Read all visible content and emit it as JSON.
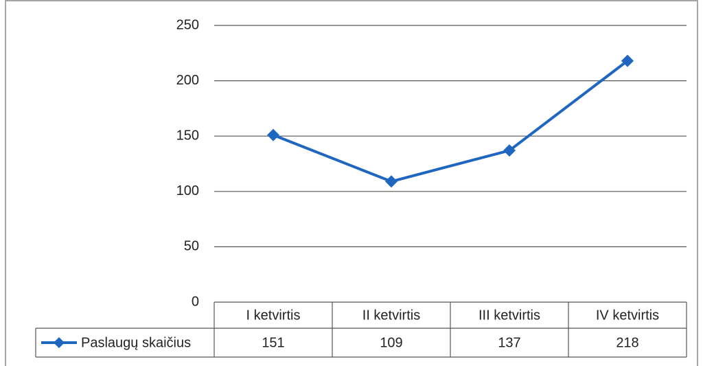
{
  "chart_data": {
    "type": "line",
    "categories": [
      "I ketvirtis",
      "II ketvirtis",
      "III ketvirtis",
      "IV ketvirtis"
    ],
    "series": [
      {
        "name": "Paslaugų skaičius",
        "color": "#1f66c1",
        "values": [
          151,
          109,
          137,
          218
        ]
      }
    ],
    "ylim": [
      0,
      250
    ],
    "yticks": [
      0,
      50,
      100,
      150,
      200,
      250
    ],
    "grid": true,
    "data_table": true
  }
}
